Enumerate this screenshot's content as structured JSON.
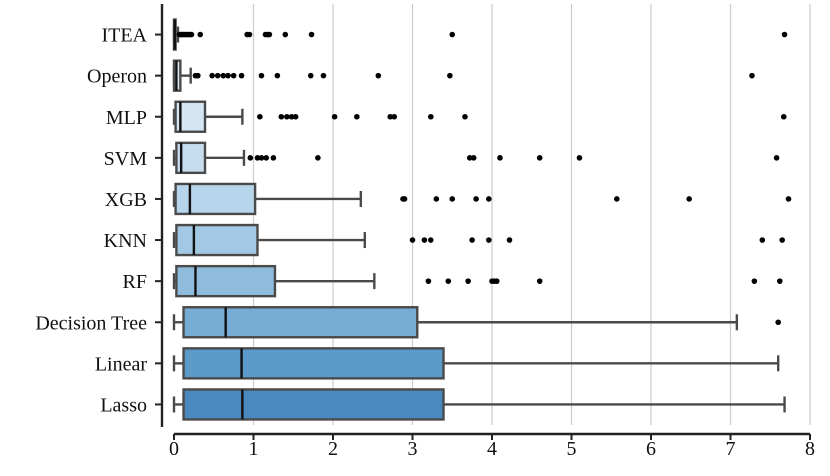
{
  "chart_data": {
    "type": "box",
    "orientation": "horizontal",
    "title": "",
    "xlabel": "",
    "ylabel": "",
    "xlim": [
      0,
      8
    ],
    "xticks": [
      0,
      1,
      2,
      3,
      4,
      5,
      6,
      7,
      8
    ],
    "grid": "vertical",
    "categories": [
      "ITEA",
      "Operon",
      "MLP",
      "SVM",
      "XGB",
      "KNN",
      "RF",
      "Decision Tree",
      "Linear",
      "Lasso"
    ],
    "boxes": [
      {
        "name": "ITEA",
        "whisker_low": 0.0,
        "q1": 0.0,
        "median": 0.01,
        "q3": 0.02,
        "whisker_high": 0.05,
        "outliers": [
          0.07,
          0.09,
          0.1,
          0.12,
          0.14,
          0.16,
          0.18,
          0.2,
          0.22,
          0.33,
          0.92,
          0.95,
          1.15,
          1.18,
          1.2,
          1.4,
          1.73,
          3.5,
          7.68
        ],
        "color": "#e8f1fa"
      },
      {
        "name": "Operon",
        "whisker_low": 0.0,
        "q1": 0.0,
        "median": 0.03,
        "q3": 0.08,
        "whisker_high": 0.21,
        "outliers": [
          0.27,
          0.3,
          0.48,
          0.55,
          0.62,
          0.68,
          0.75,
          0.85,
          1.1,
          1.3,
          1.72,
          1.88,
          2.57,
          3.47,
          7.27
        ],
        "color": "#deebf7"
      },
      {
        "name": "MLP",
        "whisker_low": 0.0,
        "q1": 0.02,
        "median": 0.08,
        "q3": 0.39,
        "whisker_high": 0.86,
        "outliers": [
          1.08,
          1.35,
          1.42,
          1.48,
          1.53,
          2.02,
          2.3,
          2.72,
          2.77,
          3.23,
          3.66,
          7.67
        ],
        "color": "#d4e6f4"
      },
      {
        "name": "SVM",
        "whisker_low": 0.0,
        "q1": 0.03,
        "median": 0.09,
        "q3": 0.39,
        "whisker_high": 0.88,
        "outliers": [
          0.96,
          1.05,
          1.1,
          1.16,
          1.25,
          1.81,
          3.72,
          3.77,
          4.1,
          4.6,
          5.1,
          7.58
        ],
        "color": "#c6ddf0"
      },
      {
        "name": "XGB",
        "whisker_low": 0.0,
        "q1": 0.02,
        "median": 0.2,
        "q3": 1.02,
        "whisker_high": 2.35,
        "outliers": [
          2.88,
          2.9,
          3.3,
          3.5,
          3.8,
          3.96,
          5.57,
          6.48,
          7.73
        ],
        "color": "#b6d4ea"
      },
      {
        "name": "KNN",
        "whisker_low": 0.0,
        "q1": 0.03,
        "median": 0.25,
        "q3": 1.05,
        "whisker_high": 2.4,
        "outliers": [
          3.0,
          3.15,
          3.23,
          3.75,
          3.96,
          4.22,
          7.4,
          7.65
        ],
        "color": "#a3c8e3"
      },
      {
        "name": "RF",
        "whisker_low": 0.0,
        "q1": 0.03,
        "median": 0.27,
        "q3": 1.27,
        "whisker_high": 2.52,
        "outliers": [
          3.2,
          3.45,
          3.7,
          4.0,
          4.03,
          4.06,
          4.6,
          7.3,
          7.62
        ],
        "color": "#8fbcdc"
      },
      {
        "name": "Decision Tree",
        "whisker_low": 0.0,
        "q1": 0.12,
        "median": 0.65,
        "q3": 3.06,
        "whisker_high": 7.08,
        "outliers": [
          7.6
        ],
        "color": "#77acd3"
      },
      {
        "name": "Linear",
        "whisker_low": 0.0,
        "q1": 0.12,
        "median": 0.85,
        "q3": 3.39,
        "whisker_high": 7.6,
        "outliers": [],
        "color": "#5c9bc9"
      },
      {
        "name": "Lasso",
        "whisker_low": 0.0,
        "q1": 0.12,
        "median": 0.86,
        "q3": 3.39,
        "whisker_high": 7.68,
        "outliers": [],
        "color": "#4a89be"
      }
    ],
    "box_edge_color": "#4a4a4a",
    "grid_color": "#cccccc",
    "axis_color": "#222222"
  }
}
